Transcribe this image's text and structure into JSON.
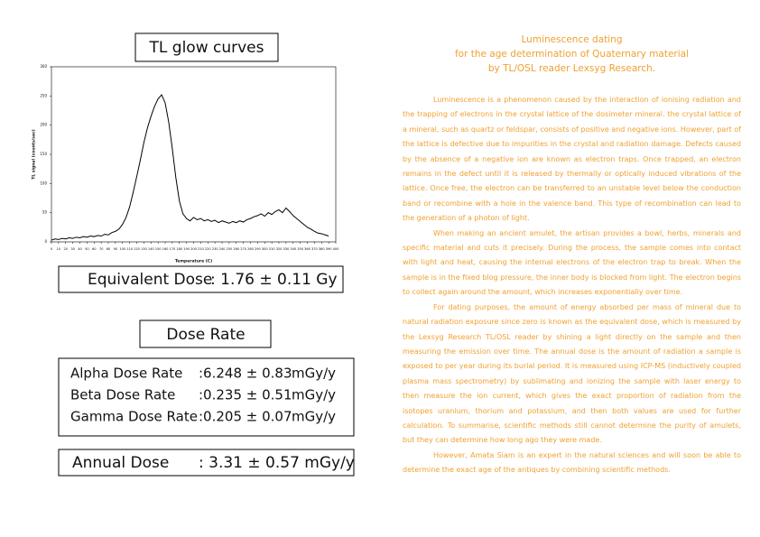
{
  "chart_data": {
    "type": "line",
    "title": "TL glow curves",
    "x_label": "Temperature (C)",
    "y_label": "TL signal (counts/sec)",
    "x": [
      0,
      5,
      10,
      15,
      20,
      25,
      30,
      35,
      40,
      45,
      50,
      55,
      60,
      65,
      70,
      75,
      80,
      85,
      90,
      95,
      100,
      105,
      110,
      115,
      120,
      125,
      130,
      135,
      140,
      145,
      150,
      155,
      160,
      165,
      170,
      175,
      180,
      185,
      190,
      195,
      200,
      205,
      210,
      215,
      220,
      225,
      230,
      235,
      240,
      245,
      250,
      255,
      260,
      265,
      270,
      275,
      280,
      285,
      290,
      295,
      300,
      305,
      310,
      315,
      320,
      325,
      330,
      335,
      340,
      345,
      350,
      355,
      360,
      365,
      370,
      375,
      380,
      385,
      390
    ],
    "values": [
      3,
      5,
      4,
      6,
      5,
      7,
      6,
      8,
      7,
      9,
      8,
      10,
      9,
      11,
      10,
      13,
      12,
      16,
      18,
      22,
      30,
      42,
      60,
      85,
      112,
      140,
      170,
      195,
      215,
      232,
      245,
      252,
      238,
      205,
      160,
      110,
      70,
      48,
      40,
      36,
      42,
      38,
      40,
      36,
      38,
      35,
      37,
      33,
      36,
      34,
      32,
      35,
      33,
      36,
      34,
      38,
      40,
      43,
      45,
      48,
      44,
      50,
      47,
      52,
      55,
      50,
      58,
      52,
      45,
      40,
      35,
      30,
      25,
      22,
      18,
      15,
      14,
      12,
      10
    ],
    "color": "#000000",
    "xlim": [
      0,
      400
    ],
    "ylim": [
      0,
      300
    ],
    "xticks": [
      0,
      10,
      20,
      30,
      40,
      50,
      60,
      70,
      80,
      90,
      100,
      110,
      120,
      130,
      140,
      150,
      160,
      170,
      180,
      190,
      200,
      210,
      220,
      230,
      240,
      250,
      260,
      270,
      280,
      290,
      300,
      310,
      320,
      330,
      340,
      350,
      360,
      370,
      380,
      390,
      400
    ],
    "yticks": [
      0,
      50,
      100,
      150,
      200,
      250,
      300
    ]
  },
  "equivalent_dose": {
    "label": "Equivalent Dose",
    "value": ": 1.76 ± 0.11 Gy"
  },
  "dose_rate_title": "Dose Rate",
  "dose_rates": [
    {
      "label": "Alpha Dose Rate",
      "value": ":6.248 ± 0.83",
      "unit": "mGy/y"
    },
    {
      "label": "Beta Dose Rate",
      "value": ":0.235 ± 0.51",
      "unit": "mGy/y"
    },
    {
      "label": "Gamma Dose Rate",
      "value": ":0.205 ± 0.07",
      "unit": "mGy/y"
    }
  ],
  "annual_dose": {
    "label": "Annual Dose",
    "value": ": 3.31 ± 0.57 mGy/y"
  },
  "article": {
    "title": [
      "Luminescence dating",
      "for the age determination of Quaternary material",
      "by TL/OSL reader Lexsyg Research."
    ],
    "paragraphs": [
      "Luminescence is a phenomenon caused by the interaction of ionising radiation and the trapping of electrons in the crystal lattice of the dosimeter mineral. the crystal lattice of a mineral, such as quartz or feldspar, consists of positive and negative ions. However, part of the lattice is defective due to impurities in the crystal and radiation damage. Defects caused by the absence of a negative ion are known as electron traps. Once trapped, an electron remains in the defect until it is released by thermally or optically induced vibrations of the lattice. Once free, the electron can be transferred to an unstable level below the conduction band or recombine with a hole in the valence band. This type of recombination can lead to the generation of a photon of light.",
      "When making an ancient amulet, the artisan provides a bowl, herbs, minerals and specific material and cuts it precisely. During the process, the sample comes into contact with light and heat, causing the internal electrons of the electron trap to break. When the sample is in the fixed blog pressure, the inner body is blocked from light. The electron begins to collect again around the amount, which increases exponentially over time.",
      "For dating purposes, the amount of energy absorbed per mass of mineral due to natural radiation exposure since zero is known as the equivalent dose, which is measured by the Lexsyg Research TL/OSL reader by shining a light directly on the sample and then measuring the emission over time. The annual dose is the amount of radiation a sample is exposed to per year during its burial period. It is measured using ICP-MS (inductively coupled plasma mass spectrometry) by sublimating and ionizing the sample with laser energy to then measure the ion current, which gives the exact proportion of radiation from the isotopes uranium, thorium and potassium, and then both values are used for further calculation. To summarise, scientific methods still cannot determine the purity of amulets, but they can determine how long ago they were made.",
      "However, Amata Siam is an expert in the natural sciences and will soon be able to determine the exact age of the antiques by combining scientific methods."
    ]
  }
}
